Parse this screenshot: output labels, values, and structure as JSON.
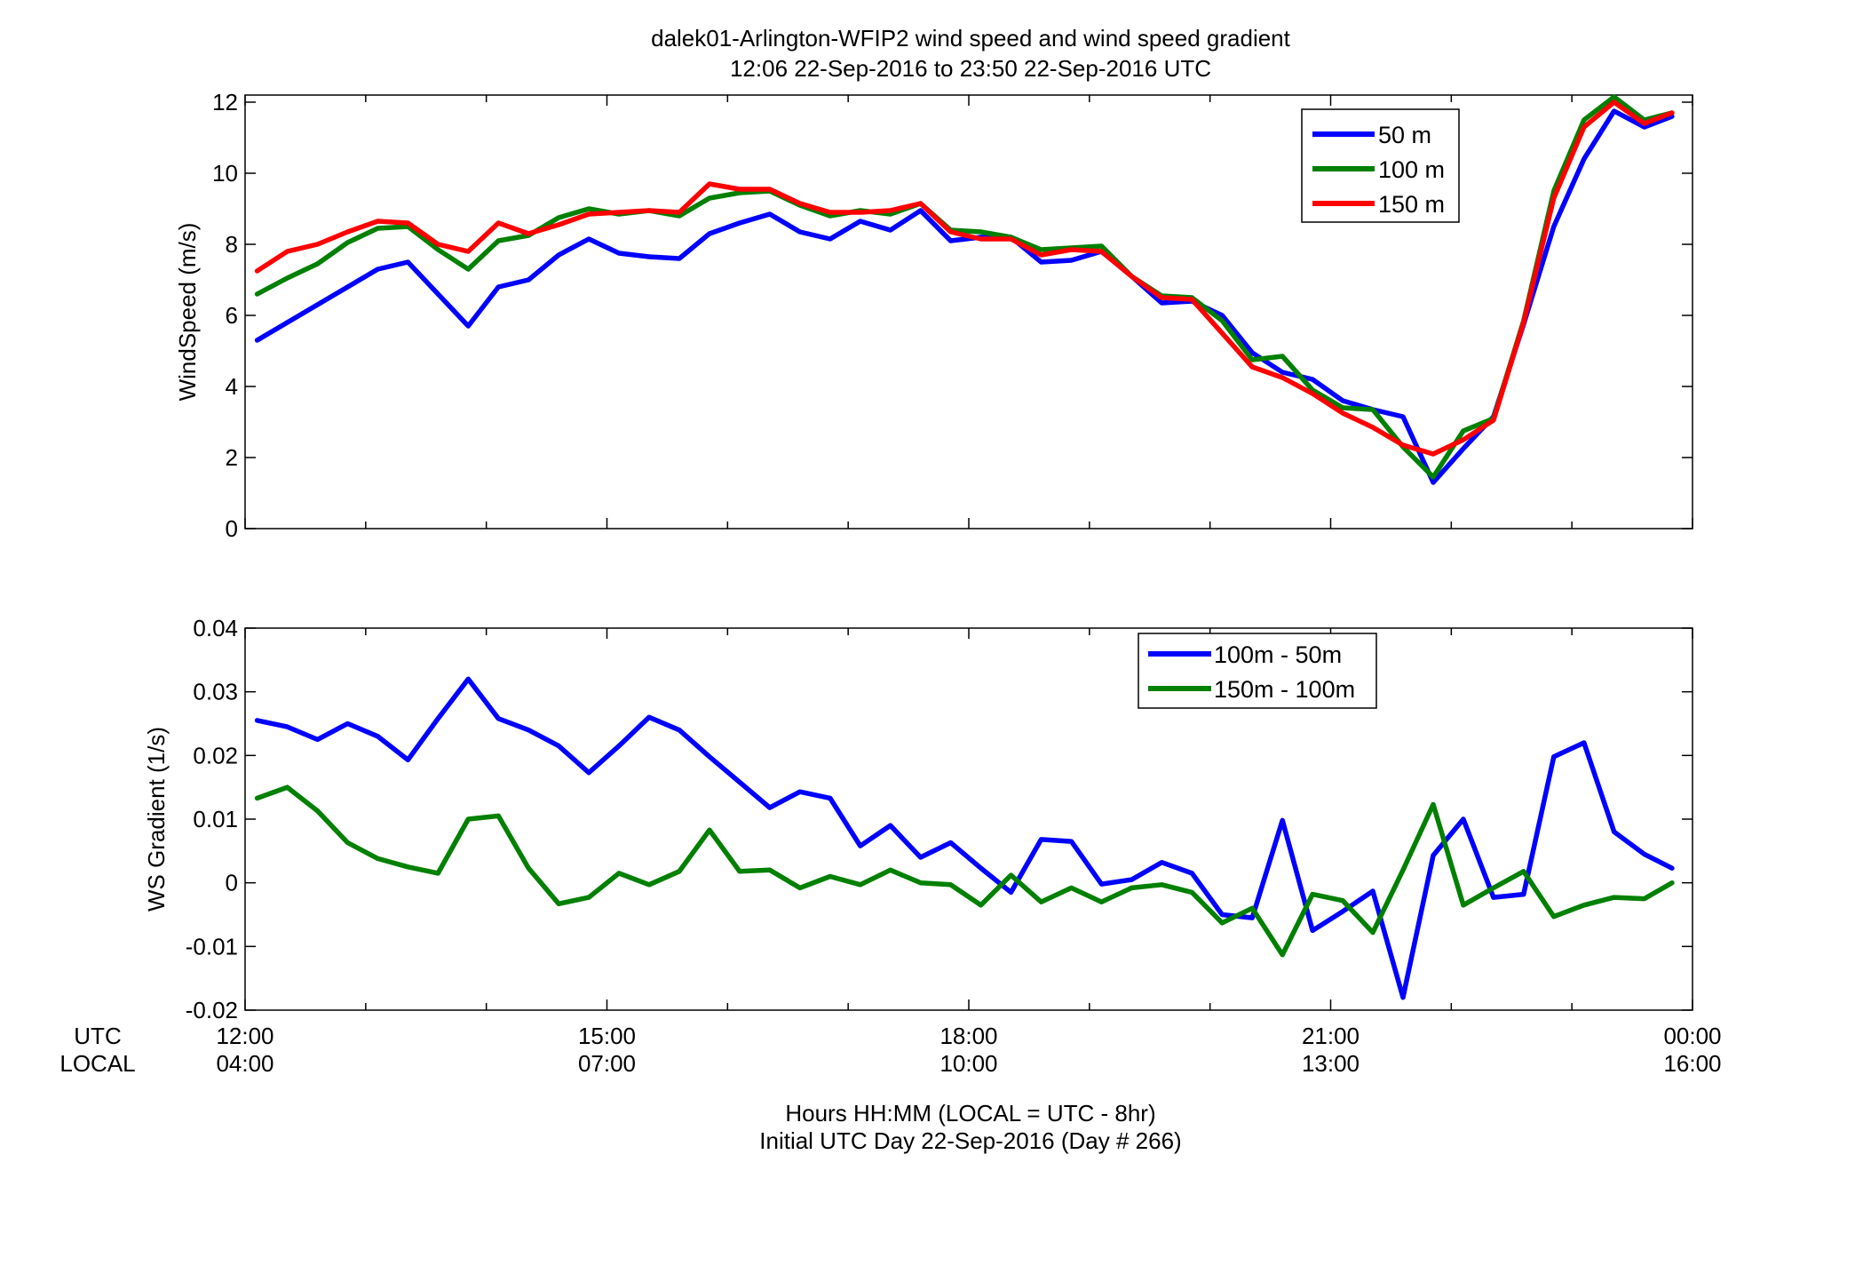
{
  "title_line1": "dalek01-Arlington-WFIP2  wind speed and wind speed gradient",
  "title_line2": "12:06 22-Sep-2016 to 23:50 22-Sep-2016  UTC",
  "utc_row_label": "UTC",
  "local_row_label": "LOCAL",
  "xlabel_line1": "Hours HH:MM  (LOCAL = UTC - 8hr)",
  "xlabel_line2": "Initial UTC Day 22-Sep-2016 (Day # 266)",
  "x_ticks_utc": [
    "12:00",
    "15:00",
    "18:00",
    "21:00",
    "00:00"
  ],
  "x_ticks_local": [
    "04:00",
    "07:00",
    "10:00",
    "13:00",
    "16:00"
  ],
  "colors": {
    "blue": "#0000ff",
    "green": "#008000",
    "red": "#ff0000"
  },
  "chart_data": [
    {
      "type": "line",
      "ylabel": "WindSpeed (m/s)",
      "xlim": [
        12.0,
        24.0
      ],
      "ylim": [
        0,
        12.2
      ],
      "yticks": [
        0,
        2,
        4,
        6,
        8,
        10,
        12
      ],
      "ytick_labels": [
        "0",
        "2",
        "4",
        "6",
        "8",
        "10",
        "12"
      ],
      "grid": false,
      "legend": "top-right",
      "x": [
        12.1,
        12.35,
        12.6,
        12.85,
        13.1,
        13.35,
        13.6,
        13.85,
        14.1,
        14.35,
        14.6,
        14.85,
        15.1,
        15.35,
        15.6,
        15.85,
        16.1,
        16.35,
        16.6,
        16.85,
        17.1,
        17.35,
        17.6,
        17.85,
        18.1,
        18.35,
        18.6,
        18.85,
        19.1,
        19.35,
        19.6,
        19.85,
        20.1,
        20.35,
        20.6,
        20.85,
        21.1,
        21.35,
        21.6,
        21.85,
        22.1,
        22.35,
        22.6,
        22.85,
        23.1,
        23.35,
        23.6,
        23.83
      ],
      "series": [
        {
          "name": "50 m",
          "color": "#0000ff",
          "values": [
            5.3,
            5.8,
            6.3,
            6.8,
            7.3,
            7.5,
            6.6,
            5.7,
            6.8,
            7.0,
            7.7,
            8.15,
            7.75,
            7.65,
            7.6,
            8.3,
            8.6,
            8.85,
            8.35,
            8.15,
            8.65,
            8.4,
            8.95,
            8.1,
            8.2,
            8.2,
            7.5,
            7.55,
            7.8,
            7.1,
            6.35,
            6.4,
            6.0,
            4.95,
            4.4,
            4.2,
            3.6,
            3.35,
            3.15,
            1.3,
            2.25,
            3.15,
            5.75,
            8.5,
            10.4,
            11.75,
            11.3,
            11.6
          ]
        },
        {
          "name": "100 m",
          "color": "#008000",
          "values": [
            6.6,
            7.05,
            7.45,
            8.05,
            8.45,
            8.5,
            7.85,
            7.3,
            8.1,
            8.25,
            8.75,
            9.0,
            8.85,
            8.95,
            8.8,
            9.3,
            9.45,
            9.5,
            9.1,
            8.8,
            8.95,
            8.85,
            9.15,
            8.4,
            8.35,
            8.2,
            7.85,
            7.9,
            7.95,
            7.1,
            6.55,
            6.5,
            5.85,
            4.75,
            4.85,
            3.9,
            3.4,
            3.35,
            2.3,
            1.45,
            2.75,
            3.1,
            5.85,
            9.5,
            11.5,
            12.15,
            11.5,
            11.7
          ]
        },
        {
          "name": "150 m",
          "color": "#ff0000",
          "values": [
            7.25,
            7.8,
            8.0,
            8.35,
            8.65,
            8.6,
            8.0,
            7.8,
            8.6,
            8.3,
            8.55,
            8.85,
            8.9,
            8.95,
            8.9,
            9.7,
            9.55,
            9.55,
            9.15,
            8.9,
            8.9,
            8.95,
            9.15,
            8.35,
            8.15,
            8.15,
            7.7,
            7.85,
            7.8,
            7.1,
            6.5,
            6.45,
            5.5,
            4.55,
            4.25,
            3.8,
            3.25,
            2.85,
            2.35,
            2.1,
            2.5,
            3.05,
            5.8,
            9.3,
            11.3,
            12.0,
            11.4,
            11.7
          ]
        }
      ]
    },
    {
      "type": "line",
      "ylabel": "WS Gradient (1/s)",
      "xlim": [
        12.0,
        24.0
      ],
      "ylim": [
        -0.02,
        0.04
      ],
      "yticks": [
        -0.02,
        -0.01,
        0,
        0.01,
        0.02,
        0.03,
        0.04
      ],
      "ytick_labels": [
        "-0.02",
        "-0.01",
        "0",
        "0.01",
        "0.02",
        "0.03",
        "0.04"
      ],
      "grid": false,
      "legend": "top-right",
      "x": [
        12.1,
        12.35,
        12.6,
        12.85,
        13.1,
        13.35,
        13.6,
        13.85,
        14.1,
        14.35,
        14.6,
        14.85,
        15.1,
        15.35,
        15.6,
        15.85,
        16.1,
        16.35,
        16.6,
        16.85,
        17.1,
        17.35,
        17.6,
        17.85,
        18.1,
        18.35,
        18.6,
        18.85,
        19.1,
        19.35,
        19.6,
        19.85,
        20.1,
        20.35,
        20.6,
        20.85,
        21.1,
        21.35,
        21.6,
        21.85,
        22.1,
        22.35,
        22.6,
        22.85,
        23.1,
        23.35,
        23.6,
        23.83
      ],
      "series": [
        {
          "name": "100m - 50m",
          "color": "#0000ff",
          "values": [
            0.0255,
            0.0245,
            0.0225,
            0.025,
            0.023,
            0.0193,
            0.0258,
            0.032,
            0.0258,
            0.024,
            0.0215,
            0.0173,
            0.0215,
            0.026,
            0.024,
            0.0198,
            0.0158,
            0.0118,
            0.0143,
            0.0133,
            0.0058,
            0.009,
            0.004,
            0.0063,
            0.0023,
            -0.0015,
            0.0068,
            0.0065,
            -0.0002,
            0.0005,
            0.0032,
            0.0015,
            -0.005,
            -0.0055,
            0.0098,
            -0.0075,
            -0.0045,
            -0.0013,
            -0.018,
            0.0043,
            0.01,
            -0.0023,
            -0.0018,
            0.0198,
            0.022,
            0.008,
            0.0045,
            0.0023
          ]
        },
        {
          "name": "150m - 100m",
          "color": "#008000",
          "values": [
            0.0133,
            0.015,
            0.0113,
            0.0063,
            0.0038,
            0.0025,
            0.0015,
            0.01,
            0.0105,
            0.0023,
            -0.0033,
            -0.0023,
            0.0015,
            -0.0003,
            0.0018,
            0.0083,
            0.0018,
            0.002,
            -0.0008,
            0.001,
            -0.0003,
            0.002,
            0.0,
            -0.0003,
            -0.0035,
            0.0012,
            -0.003,
            -0.0008,
            -0.003,
            -0.0008,
            -0.0003,
            -0.0015,
            -0.0063,
            -0.004,
            -0.0113,
            -0.0018,
            -0.0028,
            -0.0078,
            0.002,
            0.0123,
            -0.0035,
            -0.0008,
            0.0018,
            -0.0053,
            -0.0035,
            -0.0023,
            -0.0025,
            0.0
          ]
        }
      ]
    }
  ]
}
